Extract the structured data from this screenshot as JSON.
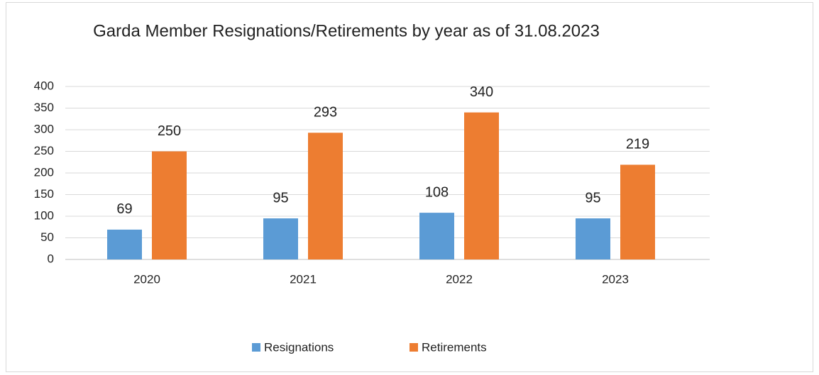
{
  "chart_data": {
    "type": "bar",
    "title": "Garda Member Resignations/Retirements by year as of 31.08.2023",
    "categories": [
      "2020",
      "2021",
      "2022",
      "2023"
    ],
    "series": [
      {
        "name": "Resignations",
        "color": "#5b9bd5",
        "values": [
          69,
          95,
          108,
          95
        ]
      },
      {
        "name": "Retirements",
        "color": "#ed7d31",
        "values": [
          250,
          293,
          340,
          219
        ]
      }
    ],
    "ylim": [
      0,
      400
    ],
    "yticks": [
      0,
      50,
      100,
      150,
      200,
      250,
      300,
      350,
      400
    ],
    "grid": true,
    "legend": "bottom"
  }
}
